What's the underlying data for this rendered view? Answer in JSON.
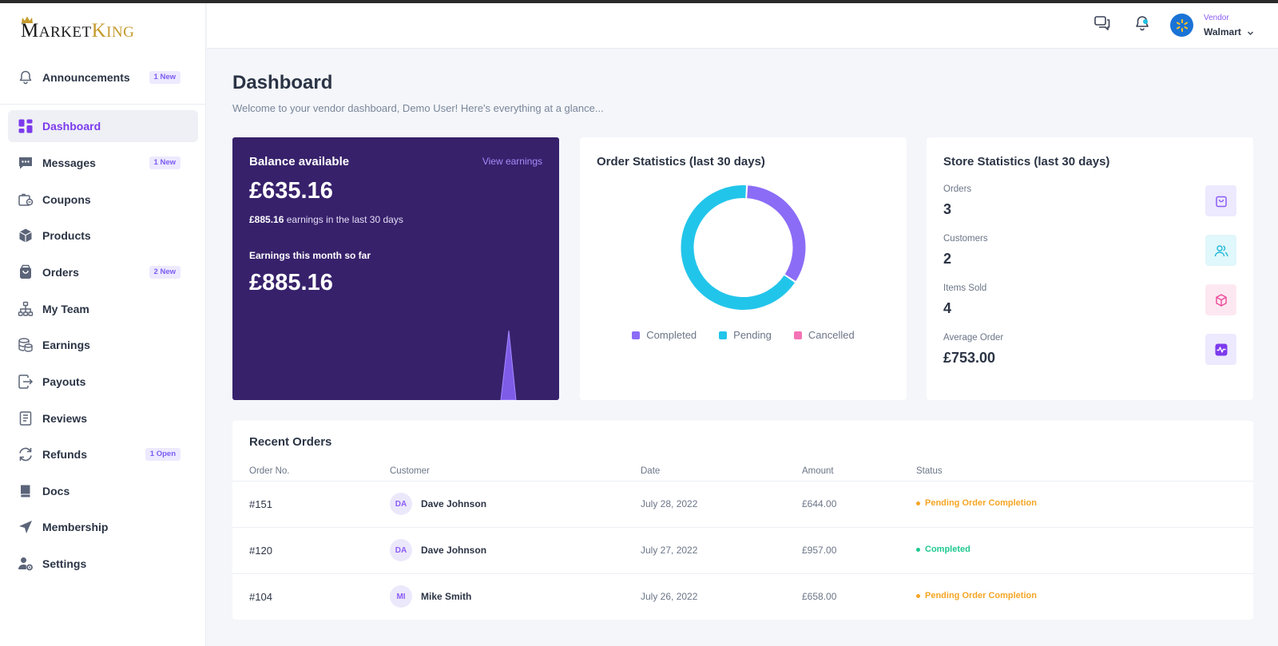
{
  "app": {
    "logo_text": "MarketKing",
    "logo_parts": [
      "M",
      "ARKET",
      "K",
      "ING"
    ]
  },
  "colors": {
    "accent": "#7c3aed",
    "balance_card": "#37216b",
    "completed": "#8b6cf6",
    "pending": "#22c5ea",
    "cancelled": "#f472b6",
    "status_pending": "#f5a524",
    "status_completed": "#1fc98f"
  },
  "sidebar": {
    "items": [
      {
        "label": "Announcements",
        "badge": "1 New",
        "icon": "bell-icon"
      },
      {
        "label": "Dashboard",
        "badge": "",
        "icon": "grid-icon",
        "active": true
      },
      {
        "label": "Messages",
        "badge": "1 New",
        "icon": "chat-icon"
      },
      {
        "label": "Coupons",
        "badge": "",
        "icon": "coupon-icon"
      },
      {
        "label": "Products",
        "badge": "",
        "icon": "box-icon"
      },
      {
        "label": "Orders",
        "badge": "2 New",
        "icon": "bag-icon"
      },
      {
        "label": "My Team",
        "badge": "",
        "icon": "org-chart-icon"
      },
      {
        "label": "Earnings",
        "badge": "",
        "icon": "coins-icon"
      },
      {
        "label": "Payouts",
        "badge": "",
        "icon": "payout-icon"
      },
      {
        "label": "Reviews",
        "badge": "",
        "icon": "review-icon"
      },
      {
        "label": "Refunds",
        "badge": "1 Open",
        "icon": "refresh-icon"
      },
      {
        "label": "Docs",
        "badge": "",
        "icon": "book-icon"
      },
      {
        "label": "Membership",
        "badge": "",
        "icon": "send-icon"
      },
      {
        "label": "Settings",
        "badge": "",
        "icon": "user-gear-icon"
      }
    ]
  },
  "header": {
    "vendor_role": "Vendor",
    "vendor_name": "Walmart"
  },
  "main": {
    "title": "Dashboard",
    "subtitle": "Welcome to your vendor dashboard, Demo User! Here's everything at a glance..."
  },
  "balance": {
    "title": "Balance available",
    "link": "View earnings",
    "amount": "£635.16",
    "note_amount": "£885.16",
    "note_text": " earnings in the last 30 days",
    "month_title": "Earnings this month so far",
    "month_amount": "£885.16"
  },
  "order_stats": {
    "title": "Order Statistics (last 30 days)"
  },
  "chart_data": {
    "type": "pie",
    "style": "donut",
    "categories": [
      "Completed",
      "Pending",
      "Cancelled"
    ],
    "values": [
      1,
      2,
      0
    ],
    "colors": [
      "#8b6cf6",
      "#22c5ea",
      "#f472b6"
    ],
    "legend": "bottom"
  },
  "store_stats": {
    "title": "Store Statistics (last 30 days)",
    "items": [
      {
        "label": "Orders",
        "value": "3",
        "icon": "bag-icon",
        "bg": "#ede9fe",
        "fg": "#8b5cf6"
      },
      {
        "label": "Customers",
        "value": "2",
        "icon": "users-icon",
        "bg": "#e0f7fb",
        "fg": "#22b8d6"
      },
      {
        "label": "Items Sold",
        "value": "4",
        "icon": "cube-icon",
        "bg": "#fde8f1",
        "fg": "#ec4899"
      },
      {
        "label": "Average Order",
        "value": "£753.00",
        "icon": "activity-icon",
        "bg": "#ede9fe",
        "fg": "#7c3aed"
      }
    ]
  },
  "recent_orders": {
    "title": "Recent Orders",
    "columns": [
      "Order No.",
      "Customer",
      "Date",
      "Amount",
      "Status"
    ],
    "rows": [
      {
        "no": "#151",
        "initials": "DA",
        "customer": "Dave Johnson",
        "date": "July 28, 2022",
        "amount": "£644.00",
        "status": "Pending Order Completion",
        "status_type": "pending"
      },
      {
        "no": "#120",
        "initials": "DA",
        "customer": "Dave Johnson",
        "date": "July 27, 2022",
        "amount": "£957.00",
        "status": "Completed",
        "status_type": "completed"
      },
      {
        "no": "#104",
        "initials": "MI",
        "customer": "Mike Smith",
        "date": "July 26, 2022",
        "amount": "£658.00",
        "status": "Pending Order Completion",
        "status_type": "pending"
      }
    ]
  }
}
